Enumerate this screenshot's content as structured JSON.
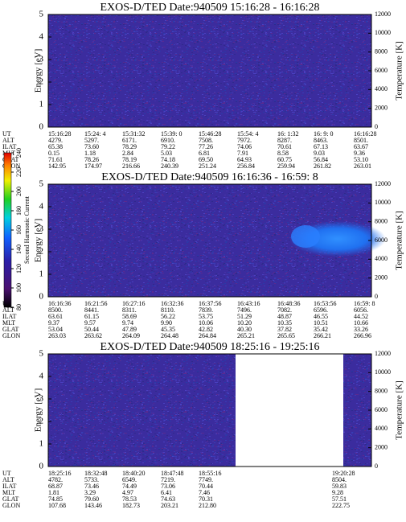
{
  "panels": [
    {
      "title": "EXOS-D/TED   Date:940509   15:16:28 - 16:16:28",
      "ylabel": "Energy [eV]",
      "y2label": "Temperature [K]",
      "ylim": [
        0,
        5
      ],
      "yticks": [
        0,
        1,
        2,
        3,
        4,
        5
      ],
      "y2lim": [
        0,
        12000
      ],
      "y2ticks": [
        0,
        2000,
        4000,
        6000,
        8000,
        10000,
        12000
      ],
      "row_labels": [
        "UT",
        "ALT",
        "ILAT",
        "MLT",
        "GLAT",
        "GLON"
      ],
      "rows": [
        [
          "15:16:28",
          "15:24: 4",
          "15:31:32",
          "15:39: 0",
          "15:46:28",
          "15:54: 4",
          "16: 1:32",
          "16: 9: 0",
          "16:16:28"
        ],
        [
          "4279.",
          "5297.",
          "6171.",
          "6910.",
          "7508.",
          "7972.",
          "8287.",
          "8463.",
          "8501."
        ],
        [
          "65.38",
          "73.60",
          "78.29",
          "79.22",
          "77.26",
          "74.06",
          "70.61",
          "67.13",
          "63.67"
        ],
        [
          "0.15",
          "1.18",
          "2.84",
          "5.03",
          "6.81",
          "7.91",
          "8.58",
          "9.03",
          "9.36"
        ],
        [
          "71.61",
          "78.26",
          "78.19",
          "74.18",
          "69.50",
          "64.93",
          "60.75",
          "56.84",
          "53.10"
        ],
        [
          "142.95",
          "174.97",
          "216.66",
          "240.39",
          "251.24",
          "256.84",
          "259.94",
          "261.82",
          "263.01"
        ]
      ]
    },
    {
      "title": "EXOS-D/TED   Date:940509  16:16:36 - 16:59: 8",
      "ylabel": "Energy [eV]",
      "y2label": "Temperature [K]",
      "ylim": [
        0,
        5
      ],
      "yticks": [
        0,
        1,
        2,
        3,
        4,
        5
      ],
      "y2lim": [
        0,
        12000
      ],
      "y2ticks": [
        0,
        2000,
        4000,
        6000,
        8000,
        10000,
        12000
      ],
      "row_labels": [
        "UT",
        "ALT",
        "ILAT",
        "MLT",
        "GLAT",
        "GLON"
      ],
      "rows": [
        [
          "16:16:36",
          "16:21:56",
          "16:27:16",
          "16:32:36",
          "16:37:56",
          "16:43:16",
          "16:48:36",
          "16:53:56",
          "16:59: 8"
        ],
        [
          "8500.",
          "8441.",
          "8311.",
          "8110.",
          "7839.",
          "7496.",
          "7082.",
          "6596.",
          "6056."
        ],
        [
          "63.61",
          "61.15",
          "58.69",
          "56.22",
          "53.75",
          "51.29",
          "48.87",
          "46.55",
          "44.52"
        ],
        [
          "9.37",
          "9.57",
          "9.74",
          "9.90",
          "10.06",
          "10.20",
          "10.35",
          "10.51",
          "10.66"
        ],
        [
          "53.04",
          "50.44",
          "47.89",
          "45.35",
          "42.82",
          "40.30",
          "37.82",
          "35.42",
          "33.26"
        ],
        [
          "263.03",
          "263.62",
          "264.09",
          "264.48",
          "264.84",
          "265.21",
          "265.65",
          "266.21",
          "266.96"
        ]
      ]
    },
    {
      "title": "EXOS-D/TED   Date:940509   18:25:16 - 19:25:16",
      "ylabel": "Energy [eV]",
      "y2label": "Temperature [K]",
      "ylim": [
        0,
        5
      ],
      "yticks": [
        0,
        1,
        2,
        3,
        4,
        5
      ],
      "y2lim": [
        0,
        12000
      ],
      "y2ticks": [
        0,
        2000,
        4000,
        6000,
        8000,
        10000,
        12000
      ],
      "row_labels": [
        "UT",
        "ALT",
        "ILAT",
        "MLT",
        "GLAT",
        "GLON"
      ],
      "rows": [
        [
          "18:25:16",
          "18:32:48",
          "18:40:20",
          "18:47:48",
          "18:55:16",
          "19:20:28"
        ],
        [
          "4782.",
          "5733.",
          "6549.",
          "7219.",
          "7749.",
          "8504."
        ],
        [
          "68.87",
          "73.46",
          "74.49",
          "73.06",
          "70.44",
          "59.83"
        ],
        [
          "1.81",
          "3.29",
          "4.97",
          "6.41",
          "7.46",
          "9.28"
        ],
        [
          "74.85",
          "79.60",
          "78.53",
          "74.63",
          "70.31",
          "57.51"
        ],
        [
          "107.68",
          "143.46",
          "182.73",
          "203.21",
          "212.80",
          "222.75"
        ]
      ]
    }
  ],
  "colorbar": {
    "label": "Second Harmonic Current",
    "lim": [
      80,
      240
    ],
    "ticks": [
      80,
      100,
      120,
      140,
      160,
      180,
      200,
      220,
      240
    ]
  }
}
